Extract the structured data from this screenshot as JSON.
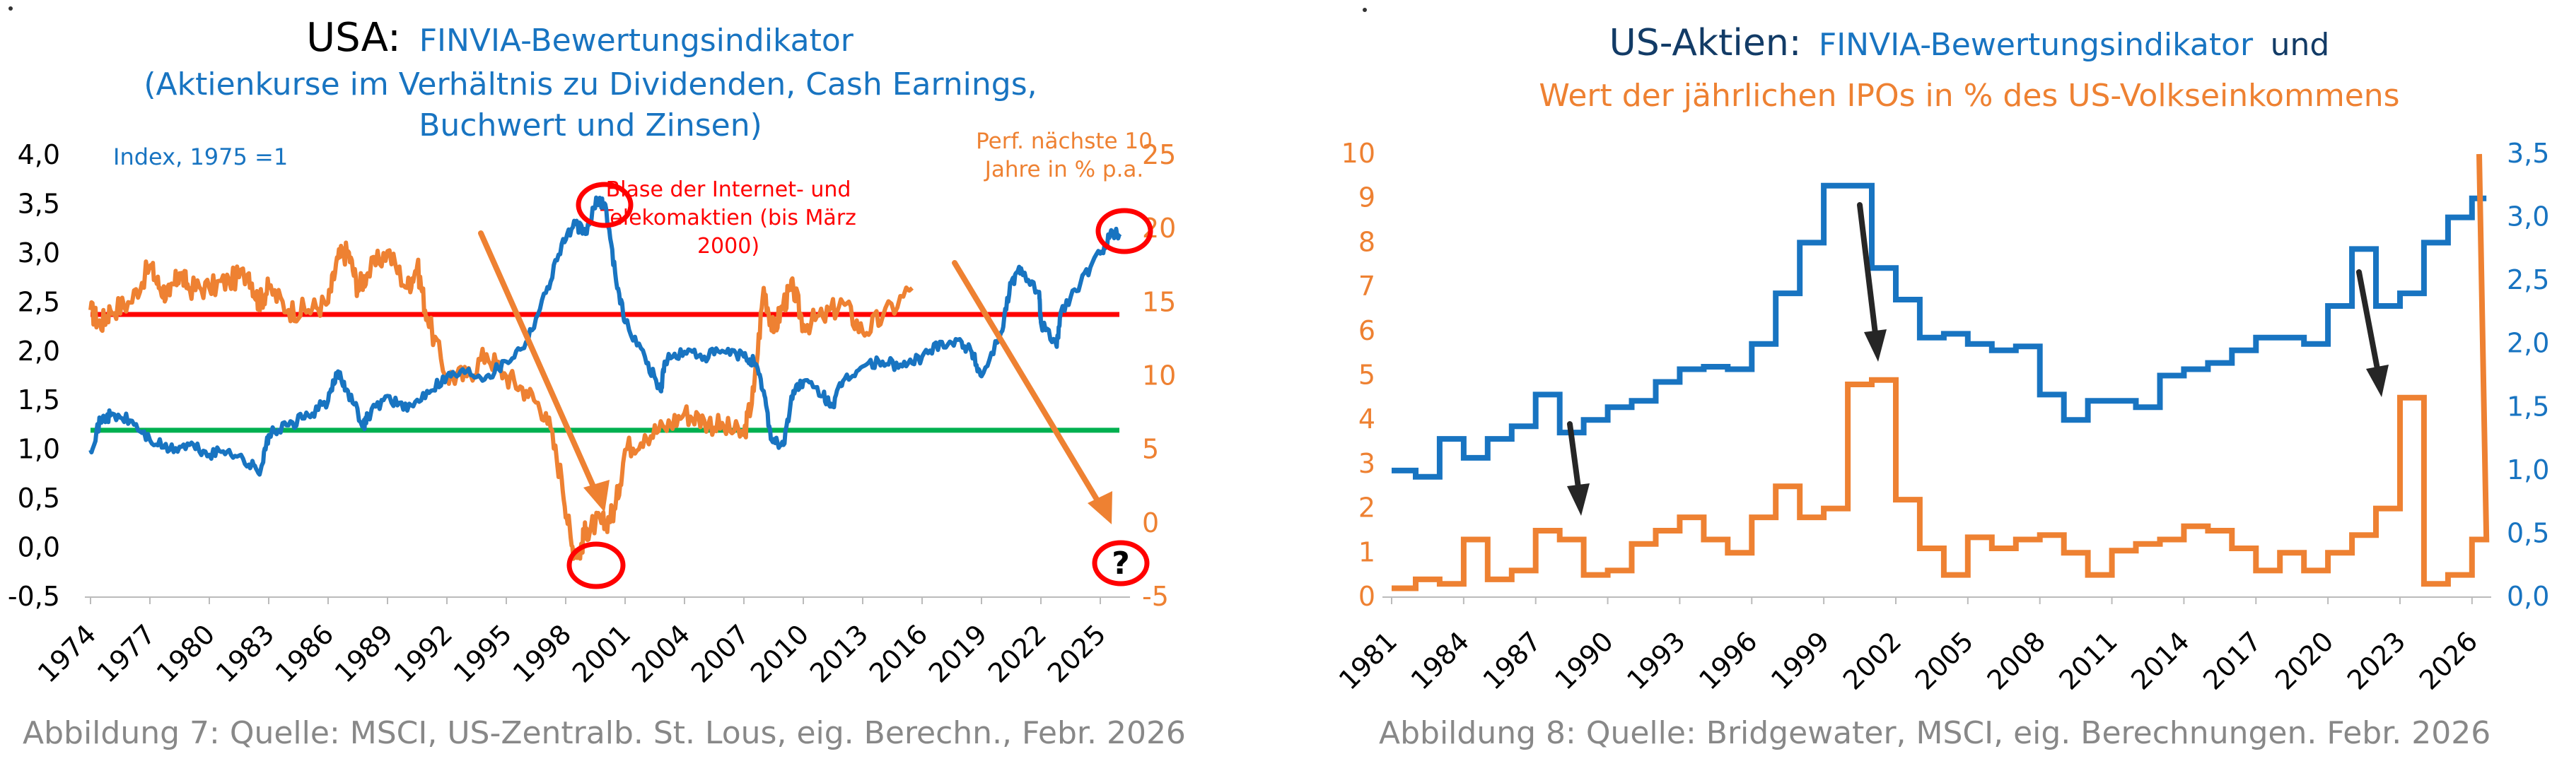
{
  "colors": {
    "blue": "#1874c1",
    "orange": "#ee8132",
    "red": "#ff0000",
    "green": "#00b050",
    "navy": "#123b66",
    "black": "#000000",
    "gray": "#888888",
    "arrow_dark": "#262626"
  },
  "chart_data": [
    {
      "type": "line",
      "title": "USA:",
      "title_highlight": "FINVIA-Bewertungsindikator",
      "subtitle_line1": "(Aktienkurse im Verhältnis zu Dividenden, Cash Earnings,",
      "subtitle_line2": "Buchwert und Zinsen)",
      "left_axis_label": "Index, 1975 =1",
      "right_axis_label_line1": "Perf. nächste 10",
      "right_axis_label_line2": "Jahre in % p.a.",
      "annotation_line1": "Blase der Internet- und",
      "annotation_line2": "Telekomaktien (bis März",
      "annotation_line3": "2000)",
      "question_mark": "?",
      "caption": "Abbildung 7: Quelle: MSCI, US-Zentralb. St. Lous, eig. Berechn., Febr. 2026",
      "x_range": [
        1974,
        2026.5
      ],
      "x_ticks": [
        "1974",
        "1977",
        "1980",
        "1983",
        "1986",
        "1989",
        "1992",
        "1995",
        "1998",
        "2001",
        "2004",
        "2007",
        "2010",
        "2013",
        "2016",
        "2019",
        "2022",
        "2025"
      ],
      "y_left_range": [
        -0.5,
        4.0
      ],
      "y_left_ticks": [
        "4,0",
        "3,5",
        "3,0",
        "2,5",
        "2,0",
        "1,5",
        "1,0",
        "0,5",
        "0,0",
        "-0,5"
      ],
      "y_right_range": [
        -5,
        25
      ],
      "y_right_ticks": [
        "25",
        "20",
        "15",
        "10",
        "5",
        "0",
        "-5"
      ],
      "reference_lines": [
        {
          "name": "red-line",
          "axis": "left",
          "y": 2.38
        },
        {
          "name": "green-line",
          "axis": "left",
          "y": 1.2
        }
      ],
      "series": [
        {
          "name": "FINVIA-Bewertungsindikator",
          "axis": "left",
          "x": [
            1974,
            1974.5,
            1975,
            1976,
            1977,
            1978,
            1979,
            1980,
            1981,
            1982,
            1982.6,
            1983,
            1984,
            1985,
            1986,
            1986.5,
            1987,
            1987.8,
            1988,
            1989,
            1990,
            1991,
            1992,
            1993,
            1994,
            1995,
            1996,
            1997,
            1997.8,
            1998.5,
            1999,
            1999.6,
            2000,
            2000.5,
            2001,
            2002,
            2002.8,
            2003,
            2004,
            2005,
            2006,
            2007,
            2007.5,
            2008,
            2008.4,
            2009,
            2009.5,
            2010,
            2011,
            2011.5,
            2012,
            2013,
            2014,
            2015,
            2016,
            2017,
            2018,
            2018.5,
            2019,
            2020,
            2020.5,
            2021,
            2021.9,
            2022,
            2022.8,
            2023,
            2024,
            2025,
            2025.5,
            2026
          ],
          "values": [
            1.0,
            1.3,
            1.35,
            1.3,
            1.1,
            1.0,
            1.05,
            0.95,
            1.0,
            0.85,
            0.8,
            1.15,
            1.25,
            1.35,
            1.5,
            1.8,
            1.6,
            1.25,
            1.35,
            1.55,
            1.4,
            1.6,
            1.75,
            1.8,
            1.75,
            1.9,
            2.1,
            2.6,
            3.1,
            3.3,
            3.2,
            3.55,
            3.5,
            2.8,
            2.3,
            1.95,
            1.6,
            1.9,
            2.0,
            1.95,
            2.0,
            1.95,
            1.9,
            1.6,
            1.1,
            1.05,
            1.6,
            1.7,
            1.55,
            1.45,
            1.7,
            1.85,
            1.9,
            1.85,
            1.95,
            2.1,
            2.1,
            2.0,
            1.75,
            2.2,
            2.7,
            2.85,
            2.6,
            2.3,
            2.05,
            2.4,
            2.7,
            3.0,
            3.2,
            3.2
          ]
        },
        {
          "name": "Perf. nächste 10 Jahre in % p.a.",
          "axis": "right",
          "x": [
            1974,
            1974.5,
            1975,
            1976,
            1977,
            1977.5,
            1978,
            1978.5,
            1979,
            1980,
            1981,
            1982,
            1982.5,
            1983,
            1984,
            1985,
            1986,
            1986.5,
            1987,
            1987.5,
            1988,
            1989,
            1990,
            1990.5,
            1991,
            1992,
            1993,
            1994,
            1995,
            1996,
            1997,
            1997.8,
            1998.3,
            1998.7,
            1999,
            1999.5,
            2000,
            2000.5,
            2001,
            2002,
            2003,
            2004,
            2005,
            2006,
            2007,
            2007.5,
            2008,
            2008.5,
            2009,
            2009.5,
            2010,
            2011,
            2012,
            2013,
            2014,
            2015.5
          ],
          "values": [
            14.5,
            13.5,
            14.5,
            15.0,
            17.5,
            16.0,
            15.5,
            17.0,
            16.0,
            16.0,
            16.5,
            17.0,
            15.0,
            16.0,
            14.5,
            14.5,
            15.0,
            18.0,
            18.5,
            16.0,
            17.0,
            18.5,
            16.0,
            17.5,
            14.0,
            10.0,
            10.0,
            11.5,
            10.0,
            9.0,
            7.5,
            3.0,
            -1.5,
            -2.0,
            -0.5,
            0.0,
            0.0,
            1.0,
            5.0,
            6.0,
            6.5,
            7.5,
            7.0,
            6.5,
            6.0,
            9.0,
            16.0,
            13.0,
            15.0,
            16.0,
            13.5,
            14.0,
            15.0,
            13.0,
            14.0,
            16.0
          ]
        }
      ]
    },
    {
      "type": "line",
      "title": "US-Aktien:",
      "title_highlight": "FINVIA-Bewertungsindikator",
      "title_tail": "und",
      "subtitle_line1": "Wert der jährlichen IPOs in % des US-Volkseinkommens",
      "caption": "Abbildung 8: Quelle: Bridgewater, MSCI, eig. Berechnungen. Febr. 2026",
      "x_range": [
        1981,
        2026.8
      ],
      "x_ticks": [
        "1981",
        "1984",
        "1987",
        "1990",
        "1993",
        "1996",
        "1999",
        "2002",
        "2005",
        "2008",
        "2011",
        "2014",
        "2017",
        "2020",
        "2023",
        "2026"
      ],
      "y_left_range": [
        0,
        10
      ],
      "y_left_ticks": [
        "10",
        "9",
        "8",
        "7",
        "6",
        "5",
        "4",
        "3",
        "2",
        "1",
        "0"
      ],
      "y_right_range": [
        0.0,
        3.5
      ],
      "y_right_ticks": [
        "3,5",
        "3,0",
        "2,5",
        "2,0",
        "1,5",
        "1,0",
        "0,5",
        "0,0"
      ],
      "series": [
        {
          "name": "FINVIA-Bewertungsindikator",
          "axis": "right",
          "step": true,
          "x": [
            1981,
            1982,
            1983,
            1984,
            1985,
            1986,
            1987,
            1988,
            1989,
            1990,
            1991,
            1992,
            1993,
            1994,
            1995,
            1996,
            1997,
            1998,
            1999,
            2000,
            2001,
            2002,
            2003,
            2004,
            2005,
            2006,
            2007,
            2008,
            2009,
            2010,
            2011,
            2012,
            2013,
            2014,
            2015,
            2016,
            2017,
            2018,
            2019,
            2020,
            2021,
            2022,
            2023,
            2024,
            2025,
            2026
          ],
          "values": [
            1.0,
            0.95,
            1.25,
            1.1,
            1.25,
            1.35,
            1.6,
            1.3,
            1.4,
            1.5,
            1.55,
            1.7,
            1.8,
            1.82,
            1.8,
            2.0,
            2.4,
            2.8,
            3.25,
            3.25,
            2.6,
            2.35,
            2.05,
            2.08,
            2.0,
            1.95,
            1.98,
            1.6,
            1.4,
            1.55,
            1.55,
            1.5,
            1.75,
            1.8,
            1.85,
            1.95,
            2.05,
            2.05,
            2.0,
            2.3,
            2.75,
            2.3,
            2.4,
            2.8,
            3.0,
            3.15
          ]
        },
        {
          "name": "Wert der jährlichen IPOs in % des US-Volkseinkommens",
          "axis": "left",
          "step": true,
          "x": [
            1981,
            1982,
            1983,
            1984,
            1985,
            1986,
            1987,
            1988,
            1989,
            1990,
            1991,
            1992,
            1993,
            1994,
            1995,
            1996,
            1997,
            1998,
            1999,
            2000,
            2001,
            2002,
            2003,
            2004,
            2005,
            2006,
            2007,
            2008,
            2009,
            2010,
            2011,
            2012,
            2013,
            2014,
            2015,
            2016,
            2017,
            2018,
            2019,
            2020,
            2021,
            2022,
            2023,
            2024,
            2025,
            2026
          ],
          "values": [
            0.2,
            0.4,
            0.3,
            1.3,
            0.4,
            0.6,
            1.5,
            1.3,
            0.5,
            0.6,
            1.2,
            1.5,
            1.8,
            1.3,
            1.0,
            1.8,
            2.5,
            1.8,
            2.0,
            4.8,
            4.9,
            2.2,
            1.1,
            0.5,
            1.35,
            1.1,
            1.3,
            1.4,
            1.0,
            0.5,
            1.05,
            1.2,
            1.3,
            1.6,
            1.5,
            1.1,
            0.6,
            1.0,
            0.6,
            1.0,
            1.4,
            2.0,
            4.5,
            0.3,
            0.5,
            1.3
          ]
        }
      ]
    }
  ]
}
